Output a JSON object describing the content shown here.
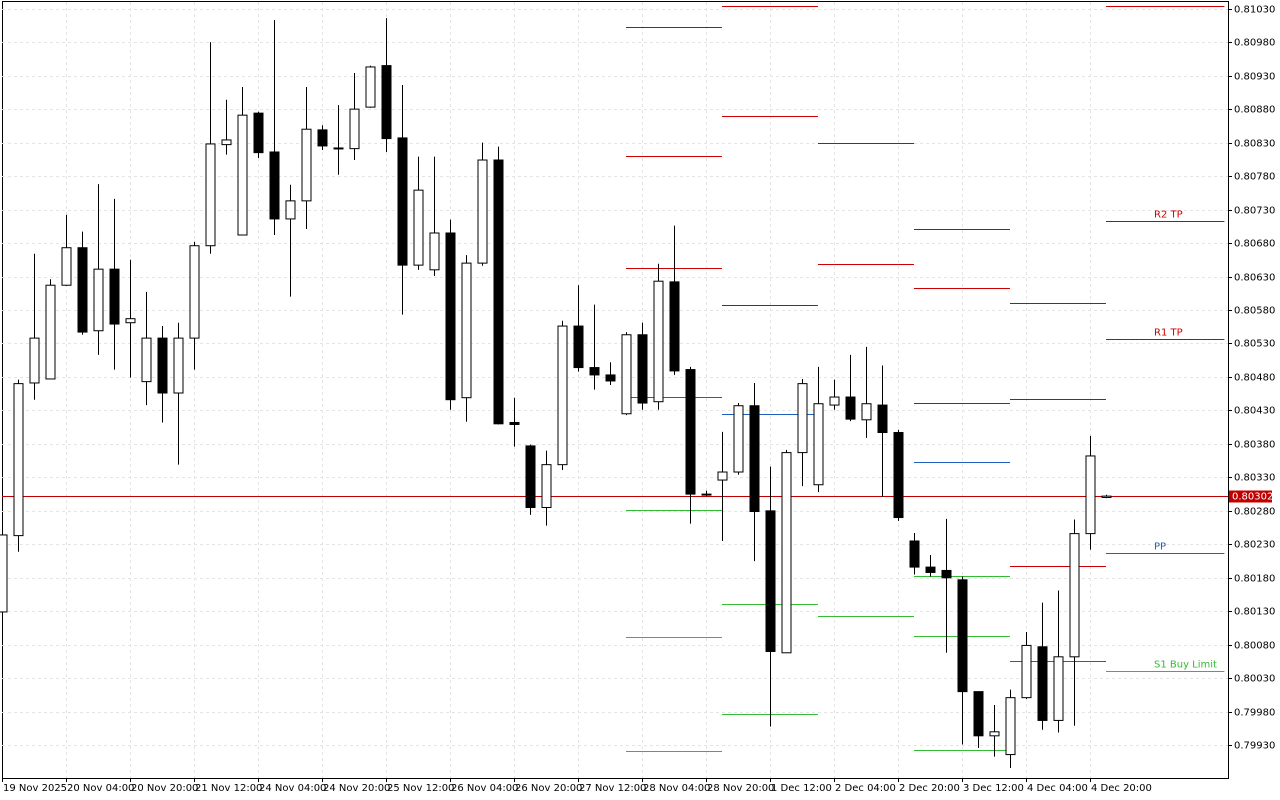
{
  "chart_data": {
    "type": "candlestick",
    "categories": [
      "19 Nov 2025",
      null,
      null,
      null,
      "20 Nov 04:00",
      null,
      null,
      null,
      "20 Nov 20:00",
      null,
      null,
      null,
      "21 Nov 12:00",
      null,
      null,
      null,
      "24 Nov 04:00",
      null,
      null,
      null,
      "24 Nov 20:00",
      null,
      null,
      null,
      "25 Nov 12:00",
      null,
      null,
      null,
      "26 Nov 04:00",
      null,
      null,
      null,
      "26 Nov 20:00",
      null,
      null,
      null,
      "27 Nov 12:00",
      null,
      null,
      null,
      "28 Nov 04:00",
      null,
      null,
      null,
      "28 Nov 20:00",
      null,
      null,
      null,
      "1 Dec 12:00",
      null,
      null,
      null,
      "2 Dec 04:00",
      null,
      null,
      null,
      "2 Dec 20:00",
      null,
      null,
      null,
      "3 Dec 12:00",
      null,
      null,
      null,
      "4 Dec 04:00",
      null,
      null,
      null,
      "4 Dec 20:00",
      null
    ],
    "open": [
      0.80129,
      0.80243,
      0.80471,
      0.80477,
      0.80617,
      0.80673,
      0.80549,
      0.80641,
      0.80561,
      0.80473,
      0.80538,
      0.80456,
      0.80538,
      0.80676,
      0.80827,
      0.80692,
      0.80874,
      0.80816,
      0.80716,
      0.80743,
      0.80849,
      0.80821,
      0.80821,
      0.80883,
      0.80945,
      0.80837,
      0.80647,
      0.8064,
      0.80695,
      0.80449,
      0.8065,
      0.80804,
      0.80412,
      0.80377,
      0.80285,
      0.80349,
      0.80556,
      0.80494,
      0.80483,
      0.80425,
      0.80543,
      0.80443,
      0.80622,
      0.80491,
      0.80305,
      0.80326,
      0.80338,
      0.80437,
      0.8028,
      0.80068,
      0.80367,
      0.80319,
      0.80438,
      0.8045,
      0.80416,
      0.80438,
      0.80397,
      0.80235,
      0.80196,
      0.80191,
      0.80177,
      0.8001,
      0.79944,
      0.79916,
      0.80001,
      0.80077,
      0.79967,
      0.80062,
      0.80246,
      0.803
    ],
    "high": [
      0.80244,
      0.80476,
      0.80664,
      0.80626,
      0.80722,
      0.80697,
      0.80768,
      0.80746,
      0.80655,
      0.80607,
      0.80556,
      0.80561,
      0.80682,
      0.8098,
      0.80894,
      0.80913,
      0.80876,
      0.81013,
      0.80767,
      0.80913,
      0.80856,
      0.80886,
      0.80934,
      0.80945,
      0.81016,
      0.80916,
      0.80809,
      0.80809,
      0.80715,
      0.80662,
      0.8083,
      0.80824,
      0.80449,
      0.80379,
      0.8037,
      0.80564,
      0.80617,
      0.80588,
      0.80502,
      0.80547,
      0.80561,
      0.80649,
      0.80706,
      0.80495,
      0.8031,
      0.80398,
      0.80441,
      0.80471,
      0.80346,
      0.80371,
      0.80477,
      0.80495,
      0.80476,
      0.80513,
      0.80525,
      0.80497,
      0.80401,
      0.80247,
      0.80214,
      0.80268,
      0.80182,
      0.8001,
      0.7999,
      0.80013,
      0.80099,
      0.80143,
      0.80161,
      0.80267,
      0.80392,
      0.80304
    ],
    "low": [
      0.80129,
      0.80219,
      0.80446,
      0.80477,
      0.80616,
      0.80543,
      0.80513,
      0.80491,
      0.80479,
      0.80438,
      0.80412,
      0.80349,
      0.80491,
      0.80664,
      0.80812,
      0.80692,
      0.80807,
      0.80692,
      0.806,
      0.80701,
      0.80819,
      0.80782,
      0.80804,
      0.80882,
      0.80816,
      0.80573,
      0.8064,
      0.80631,
      0.80431,
      0.80413,
      0.80646,
      0.80409,
      0.80376,
      0.80274,
      0.80258,
      0.80341,
      0.80488,
      0.80461,
      0.80468,
      0.80423,
      0.80431,
      0.80431,
      0.80483,
      0.80261,
      0.80302,
      0.80235,
      0.80334,
      0.80205,
      0.79958,
      0.80068,
      0.80317,
      0.80308,
      0.80431,
      0.80414,
      0.80389,
      0.80301,
      0.80265,
      0.80185,
      0.80182,
      0.80068,
      0.79931,
      0.79926,
      0.79913,
      0.79896,
      0.79999,
      0.79953,
      0.79949,
      0.79959,
      0.80222,
      0.80299
    ],
    "close": [
      0.80244,
      0.8047,
      0.80538,
      0.80617,
      0.80673,
      0.80547,
      0.80641,
      0.80559,
      0.80567,
      0.80538,
      0.80456,
      0.80538,
      0.80676,
      0.80828,
      0.80834,
      0.80871,
      0.80815,
      0.80716,
      0.80743,
      0.8085,
      0.80825,
      0.80822,
      0.8088,
      0.80943,
      0.80836,
      0.80647,
      0.80759,
      0.80695,
      0.80446,
      0.8065,
      0.80804,
      0.8041,
      0.80409,
      0.80285,
      0.80349,
      0.80556,
      0.80494,
      0.80483,
      0.80474,
      0.80543,
      0.80441,
      0.80623,
      0.80489,
      0.80305,
      0.80304,
      0.80338,
      0.80437,
      0.80279,
      0.8007,
      0.80367,
      0.8047,
      0.8044,
      0.8045,
      0.80417,
      0.8044,
      0.80397,
      0.8027,
      0.80196,
      0.80188,
      0.8018,
      0.8001,
      0.79944,
      0.7995,
      0.80001,
      0.80079,
      0.79967,
      0.80062,
      0.80246,
      0.80362,
      0.80302
    ],
    "up_color": "#ffffff",
    "down_color": "#000000",
    "current_price": 0.80302,
    "current_color": "#c00000",
    "ylim": [
      0.79881,
      0.8104
    ],
    "yticks": [
      {
        "value": 0.7993,
        "label": "0.79930"
      },
      {
        "value": 0.7998,
        "label": "0.79980"
      },
      {
        "value": 0.8003,
        "label": "0.80030"
      },
      {
        "value": 0.8008,
        "label": "0.80080"
      },
      {
        "value": 0.8013,
        "label": "0.80130"
      },
      {
        "value": 0.8018,
        "label": "0.80180"
      },
      {
        "value": 0.8023,
        "label": "0.80230"
      },
      {
        "value": 0.8028,
        "label": "0.80280"
      },
      {
        "value": 0.8033,
        "label": "0.80330"
      },
      {
        "value": 0.8038,
        "label": "0.80380"
      },
      {
        "value": 0.8043,
        "label": "0.80430"
      },
      {
        "value": 0.8048,
        "label": "0.80480"
      },
      {
        "value": 0.8053,
        "label": "0.80530"
      },
      {
        "value": 0.8058,
        "label": "0.80580"
      },
      {
        "value": 0.8063,
        "label": "0.80630"
      },
      {
        "value": 0.8068,
        "label": "0.80680"
      },
      {
        "value": 0.8073,
        "label": "0.80730"
      },
      {
        "value": 0.8078,
        "label": "0.80780"
      },
      {
        "value": 0.8083,
        "label": "0.80830"
      },
      {
        "value": 0.8088,
        "label": "0.80880"
      },
      {
        "value": 0.8093,
        "label": "0.80930"
      },
      {
        "value": 0.8098,
        "label": "0.80980"
      },
      {
        "value": 0.8103,
        "label": "0.81030"
      }
    ],
    "grid": true,
    "levels": [
      {
        "start": 39,
        "end": 45,
        "value": 0.81003,
        "color": "#cc0000"
      },
      {
        "start": 39,
        "end": 45,
        "value": 0.8081,
        "color": "#cc0000"
      },
      {
        "start": 39,
        "end": 45,
        "value": 0.80643,
        "color": "#cc0000"
      },
      {
        "start": 39,
        "end": 45,
        "value": 0.8045,
        "color": "#1f5fbf"
      },
      {
        "start": 39,
        "end": 45,
        "value": 0.80282,
        "color": "#33bb33"
      },
      {
        "start": 39,
        "end": 45,
        "value": 0.80091,
        "color": "#33bb33"
      },
      {
        "start": 39,
        "end": 45,
        "value": 0.79922,
        "color": "#33bb33"
      },
      {
        "start": 45,
        "end": 51,
        "value": 0.81034,
        "color": "#cc0000"
      },
      {
        "start": 45,
        "end": 51,
        "value": 0.8087,
        "color": "#cc0000"
      },
      {
        "start": 45,
        "end": 51,
        "value": 0.80588,
        "color": "#cc0000"
      },
      {
        "start": 45,
        "end": 51,
        "value": 0.80425,
        "color": "#1f5fbf"
      },
      {
        "start": 45,
        "end": 51,
        "value": 0.80141,
        "color": "#33bb33"
      },
      {
        "start": 45,
        "end": 51,
        "value": 0.79977,
        "color": "#33bb33"
      },
      {
        "start": 51,
        "end": 57,
        "value": 0.8083,
        "color": "#cc0000"
      },
      {
        "start": 51,
        "end": 57,
        "value": 0.80649,
        "color": "#cc0000"
      },
      {
        "start": 51,
        "end": 57,
        "value": 0.80302,
        "color": "#1f5fbf"
      },
      {
        "start": 51,
        "end": 57,
        "value": 0.80123,
        "color": "#33bb33"
      },
      {
        "start": 57,
        "end": 63,
        "value": 0.80701,
        "color": "#cc0000"
      },
      {
        "start": 57,
        "end": 63,
        "value": 0.80613,
        "color": "#cc0000"
      },
      {
        "start": 57,
        "end": 63,
        "value": 0.80441,
        "color": "#cc0000"
      },
      {
        "start": 57,
        "end": 63,
        "value": 0.80353,
        "color": "#1f5fbf"
      },
      {
        "start": 57,
        "end": 63,
        "value": 0.80182,
        "color": "#33bb33"
      },
      {
        "start": 57,
        "end": 63,
        "value": 0.80093,
        "color": "#33bb33"
      },
      {
        "start": 57,
        "end": 63,
        "value": 0.79923,
        "color": "#33bb33"
      },
      {
        "start": 63,
        "end": 69,
        "value": 0.80591,
        "color": "#cc0000"
      },
      {
        "start": 63,
        "end": 69,
        "value": 0.80447,
        "color": "#cc0000"
      },
      {
        "start": 63,
        "end": 69,
        "value": 0.80198,
        "color": "#cc0000"
      },
      {
        "start": 63,
        "end": 69,
        "value": 0.80055,
        "color": "#1f5fbf"
      },
      {
        "start": 69,
        "end": 76.4,
        "value": 0.81034,
        "color": "#cc0000"
      },
      {
        "start": 69,
        "end": 76.4,
        "value": 0.80713,
        "color": "#cc0000",
        "label": "R2 TP"
      },
      {
        "start": 69,
        "end": 76.4,
        "value": 0.80537,
        "color": "#cc0000",
        "label": "R1 TP"
      },
      {
        "start": 69,
        "end": 76.4,
        "value": 0.80217,
        "color": "#1f5fbf",
        "label": "PP"
      },
      {
        "start": 69,
        "end": 76.4,
        "value": 0.80041,
        "color": "#33bb33",
        "label": "S1 Buy Limit"
      }
    ]
  }
}
